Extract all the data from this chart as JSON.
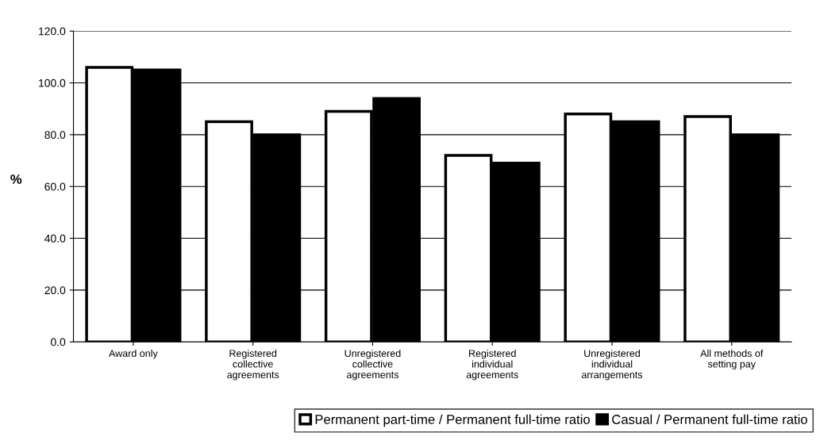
{
  "chart_data": {
    "type": "bar",
    "ylabel": "%",
    "categories": [
      "Award only",
      "Registered\ncollective\nagreements",
      "Unregistered\ncollective\nagreements",
      "Registered\nindividual\nagreements",
      "Unregistered\nindividual\narrangements",
      "All methods of\nsetting pay"
    ],
    "series": [
      {
        "name": "Permanent part-time / Permanent full-time ratio",
        "color": "#ffffff",
        "values": [
          106,
          85,
          89,
          72,
          88,
          87
        ]
      },
      {
        "name": "Casual / Permanent full-time ratio",
        "color": "#000000",
        "values": [
          105,
          80,
          94,
          69,
          85,
          80
        ]
      }
    ],
    "ylim": [
      0,
      120
    ],
    "yticks": [
      {
        "value": 0,
        "label": "0.0"
      },
      {
        "value": 20,
        "label": "20.0"
      },
      {
        "value": 40,
        "label": "40.0"
      },
      {
        "value": 60,
        "label": "60.0"
      },
      {
        "value": 80,
        "label": "80.0"
      },
      {
        "value": 100,
        "label": "100.0"
      },
      {
        "value": 120,
        "label": "120.0"
      }
    ],
    "grid": "y",
    "legend": "bottom"
  }
}
